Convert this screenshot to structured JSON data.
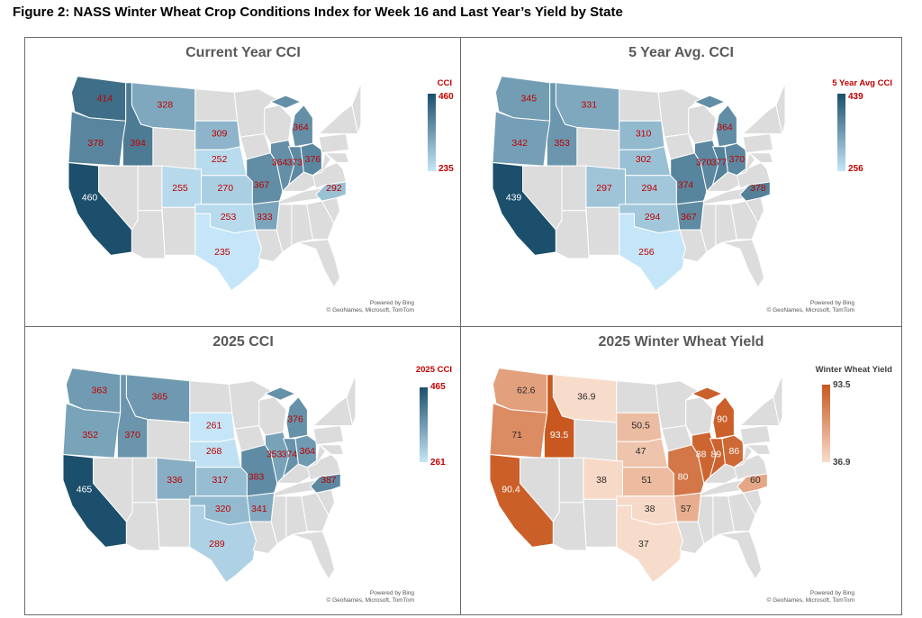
{
  "figure_title": "Figure 2: NASS Winter Wheat Crop Conditions Index for Week 16 and Last Year’s Yield by State",
  "credits": {
    "line1": "Powered by Bing",
    "line2": "© GeoNames, Microsoft, TomTom"
  },
  "colors": {
    "blue_high": "#1b4f6b",
    "blue_low": "#c5e6f8",
    "orange_high": "#c8581f",
    "orange_low": "#f8dccb",
    "no_data": "#dcdcdc",
    "label_red": "#c00000",
    "title_gray": "#595959"
  },
  "chart_data": [
    {
      "type": "choropleth",
      "title": "Current Year CCI",
      "legend_title": "CCI",
      "legend_max": "460",
      "legend_min": "235",
      "range": [
        235,
        460
      ],
      "palette": "blue",
      "states": [
        {
          "state": "WA",
          "value": 414
        },
        {
          "state": "OR",
          "value": 378
        },
        {
          "state": "ID",
          "value": 394
        },
        {
          "state": "MT",
          "value": 328
        },
        {
          "state": "CA",
          "value": 460
        },
        {
          "state": "SD",
          "value": 309
        },
        {
          "state": "NE",
          "value": 252
        },
        {
          "state": "CO",
          "value": 255
        },
        {
          "state": "KS",
          "value": 270
        },
        {
          "state": "OK",
          "value": 253
        },
        {
          "state": "TX",
          "value": 235
        },
        {
          "state": "MO",
          "value": 367
        },
        {
          "state": "AR",
          "value": 333
        },
        {
          "state": "IL",
          "value": 364
        },
        {
          "state": "IN",
          "value": 373
        },
        {
          "state": "OH",
          "value": 376
        },
        {
          "state": "MI",
          "value": 364
        },
        {
          "state": "NC",
          "value": 292
        }
      ]
    },
    {
      "type": "choropleth",
      "title": "5 Year Avg. CCI",
      "legend_title": "5 Year Avg CCI",
      "legend_max": "439",
      "legend_min": "256",
      "range": [
        256,
        439
      ],
      "palette": "blue",
      "states": [
        {
          "state": "WA",
          "value": 345
        },
        {
          "state": "OR",
          "value": 342
        },
        {
          "state": "ID",
          "value": 353
        },
        {
          "state": "MT",
          "value": 331
        },
        {
          "state": "CA",
          "value": 439
        },
        {
          "state": "SD",
          "value": 310
        },
        {
          "state": "NE",
          "value": 302
        },
        {
          "state": "CO",
          "value": 297
        },
        {
          "state": "KS",
          "value": 294
        },
        {
          "state": "OK",
          "value": 294
        },
        {
          "state": "TX",
          "value": 256
        },
        {
          "state": "MO",
          "value": 374
        },
        {
          "state": "AR",
          "value": 367
        },
        {
          "state": "IL",
          "value": 370
        },
        {
          "state": "IN",
          "value": 377
        },
        {
          "state": "OH",
          "value": 370
        },
        {
          "state": "MI",
          "value": 364
        },
        {
          "state": "NC",
          "value": 378
        }
      ]
    },
    {
      "type": "choropleth",
      "title": "2025 CCI",
      "legend_title": "2025 CCI",
      "legend_max": "465",
      "legend_min": "261",
      "range": [
        261,
        465
      ],
      "palette": "blue",
      "states": [
        {
          "state": "WA",
          "value": 363
        },
        {
          "state": "OR",
          "value": 352
        },
        {
          "state": "ID",
          "value": 370
        },
        {
          "state": "MT",
          "value": 365
        },
        {
          "state": "CA",
          "value": 465
        },
        {
          "state": "SD",
          "value": 261
        },
        {
          "state": "NE",
          "value": 268
        },
        {
          "state": "CO",
          "value": 336
        },
        {
          "state": "KS",
          "value": 317
        },
        {
          "state": "OK",
          "value": 320
        },
        {
          "state": "TX",
          "value": 289
        },
        {
          "state": "MO",
          "value": 383
        },
        {
          "state": "AR",
          "value": 341
        },
        {
          "state": "IL",
          "value": 353
        },
        {
          "state": "IN",
          "value": 374
        },
        {
          "state": "OH",
          "value": 364
        },
        {
          "state": "MI",
          "value": 376
        },
        {
          "state": "NC",
          "value": 387
        }
      ]
    },
    {
      "type": "choropleth",
      "title": "2025 Winter Wheat Yield",
      "legend_title": "Winter Wheat Yield",
      "legend_max": "93.5",
      "legend_min": "36.9",
      "range": [
        36.9,
        93.5
      ],
      "palette": "orange",
      "states": [
        {
          "state": "WA",
          "value": 62.6
        },
        {
          "state": "OR",
          "value": 71
        },
        {
          "state": "ID",
          "value": 93.5
        },
        {
          "state": "MT",
          "value": 36.9
        },
        {
          "state": "CA",
          "value": 90.4
        },
        {
          "state": "SD",
          "value": 50.5
        },
        {
          "state": "NE",
          "value": 47
        },
        {
          "state": "CO",
          "value": 38
        },
        {
          "state": "KS",
          "value": 51
        },
        {
          "state": "OK",
          "value": 38
        },
        {
          "state": "TX",
          "value": 37
        },
        {
          "state": "MO",
          "value": 80
        },
        {
          "state": "AR",
          "value": 57
        },
        {
          "state": "IL",
          "value": 88
        },
        {
          "state": "IN",
          "value": 89
        },
        {
          "state": "OH",
          "value": 86
        },
        {
          "state": "MI",
          "value": 90
        },
        {
          "state": "NC",
          "value": 60
        }
      ]
    }
  ]
}
